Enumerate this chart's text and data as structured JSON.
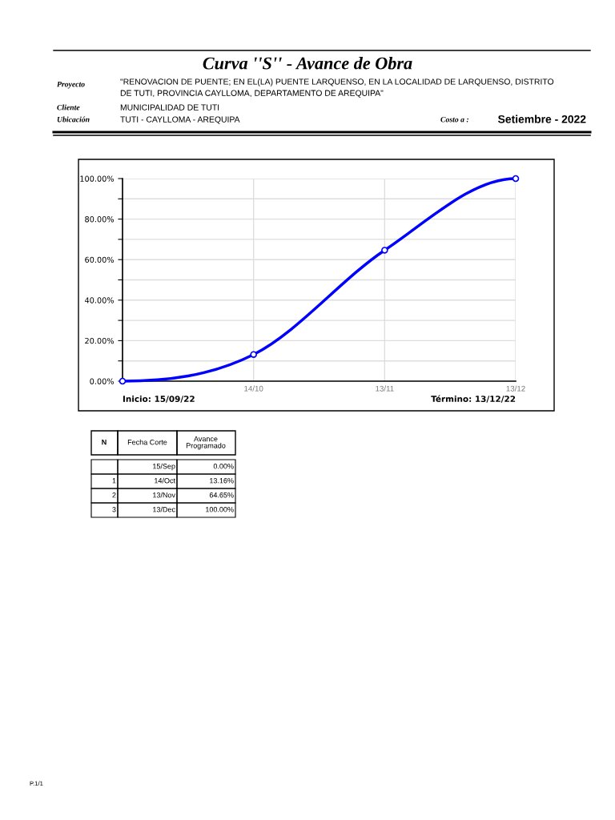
{
  "chart_data": {
    "type": "line",
    "title": "Curva ''S'' - Avance de Obra",
    "categories": [
      null,
      "14/10",
      "13/11",
      "13/12"
    ],
    "series": [
      {
        "color": "#0000ff",
        "values": [
          0,
          13.16,
          64.65,
          100
        ]
      }
    ],
    "value_labels": [
      "0.00%",
      "13.16%",
      "64.65%",
      "100.00%"
    ],
    "ylim": [
      0,
      100
    ],
    "yticks": [
      {
        "value": 0,
        "label": "0.00%"
      },
      {
        "value": 10,
        "label": null
      },
      {
        "value": 20,
        "label": "20.00%"
      },
      {
        "value": 30,
        "label": null
      },
      {
        "value": 40,
        "label": "40.00%"
      },
      {
        "value": 50,
        "label": null
      },
      {
        "value": 60,
        "label": "60.00%"
      },
      {
        "value": 70,
        "label": null
      },
      {
        "value": 80,
        "label": "80.00%"
      },
      {
        "value": 90,
        "label": null
      },
      {
        "value": 100,
        "label": "100.00%"
      }
    ],
    "grid": true,
    "marker": "circle",
    "line_style": "solid",
    "annotations": [
      "Proyecto",
      "\"RENOVACION DE PUENTE; EN EL(LA) PUENTE LARQUENSO, EN LA LOCALIDAD DE LARQUENSO, DISTRITO\nDE TUTI, PROVINCIA CAYLLOMA, DEPARTAMENTO DE AREQUIPA\"",
      "Cliente",
      "MUNICIPALIDAD DE TUTI",
      "Ubicación",
      "TUTI - CAYLLOMA - AREQUIPA",
      "Costo a :",
      "Setiembre - 2022",
      "Inicio: 15/09/22",
      "Término: 13/12/22",
      "N",
      "Fecha Corte",
      "Avance\nProgramado",
      "1",
      "2",
      "3",
      "15/Sep",
      "14/Oct",
      "13/Nov",
      "13/Dec",
      "P.1/1"
    ]
  }
}
